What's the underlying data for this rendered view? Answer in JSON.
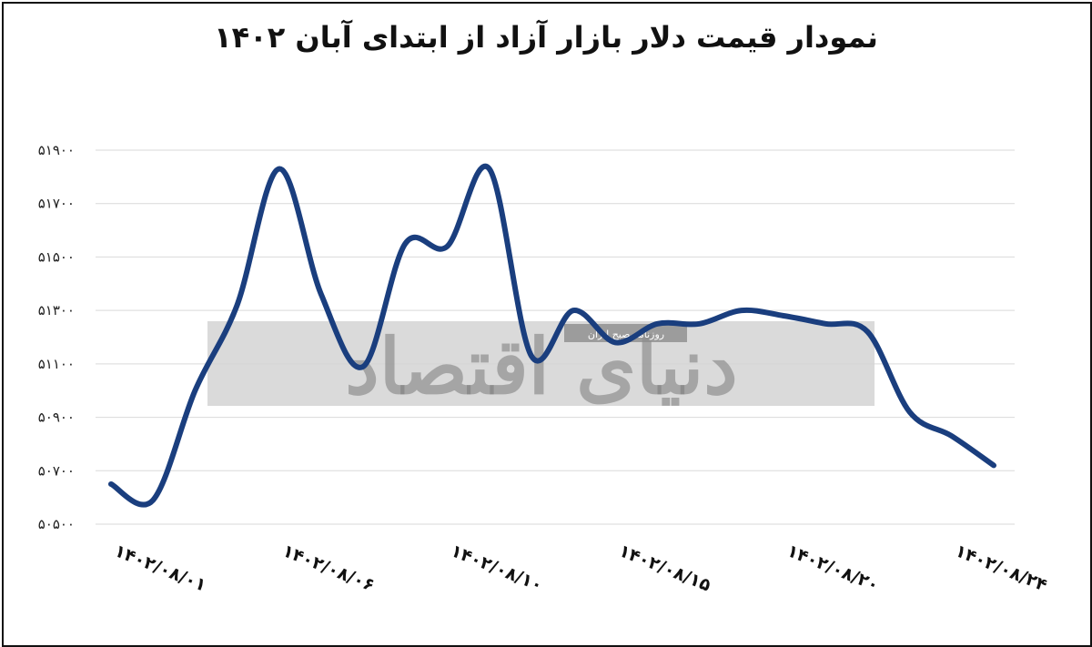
{
  "chart_data": {
    "type": "line",
    "title": "نمودار قیمت دلار بازار آزاد از ابتدای آبان ۱۴۰۲",
    "xlabel": "",
    "ylabel": "",
    "ylim": [
      50500,
      51900
    ],
    "yticks": [
      {
        "value": 50500,
        "label": "۵۰۵۰۰"
      },
      {
        "value": 50700,
        "label": "۵۰۷۰۰"
      },
      {
        "value": 50900,
        "label": "۵۰۹۰۰"
      },
      {
        "value": 51100,
        "label": "۵۱۱۰۰"
      },
      {
        "value": 51300,
        "label": "۵۱۳۰۰"
      },
      {
        "value": 51500,
        "label": "۵۱۵۰۰"
      },
      {
        "value": 51700,
        "label": "۵۱۷۰۰"
      },
      {
        "value": 51900,
        "label": "۵۱۹۰۰"
      }
    ],
    "xticks": [
      {
        "index": 0,
        "label": "۱۴۰۲/۰۸/۰۱"
      },
      {
        "index": 4,
        "label": "۱۴۰۲/۰۸/۰۶"
      },
      {
        "index": 8,
        "label": "۱۴۰۲/۰۸/۱۰"
      },
      {
        "index": 12,
        "label": "۱۴۰۲/۰۸/۱۵"
      },
      {
        "index": 16,
        "label": "۱۴۰۲/۰۸/۲۰"
      },
      {
        "index": 20,
        "label": "۱۴۰۲/۰۸/۲۴"
      }
    ],
    "grid": true,
    "series": [
      {
        "color": "#1a3e7e",
        "values": [
          50650,
          50590,
          51000,
          51320,
          51830,
          51360,
          51090,
          51550,
          51540,
          51830,
          51130,
          51300,
          51180,
          51250,
          51250,
          51300,
          51280,
          51250,
          51220,
          50920,
          50830,
          50720
        ]
      }
    ]
  },
  "watermark": {
    "text": "دنیای اقتصاد",
    "subtitle": "روزنامه صبح ایران"
  }
}
